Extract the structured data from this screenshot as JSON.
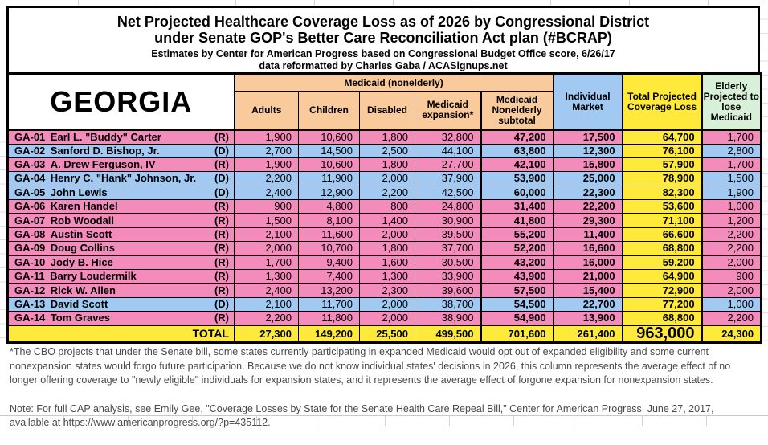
{
  "title": {
    "line1": "Net Projected Healthcare Coverage Loss as of 2026 by Congressional District",
    "line2": "under Senate GOP's Better Care Reconciliation Act plan (#BCRAP)",
    "line3": "Estimates by Center for American Progress based on Congressional Budget Office score, 6/26/17",
    "line4": "data reformatted by Charles Gaba / ACASignups.net"
  },
  "table": {
    "state": "GEORGIA",
    "group_header": "Medicaid (nonelderly)",
    "columns": [
      "Adults",
      "Children",
      "Disabled",
      "Medicaid expansion*",
      "Medicaid Nonelderly subtotal",
      "Individual Market",
      "Total Projected Coverage Loss",
      "Elderly Projected to lose Medicaid"
    ],
    "rows": [
      {
        "district": "GA-01",
        "name": "Earl L. \"Buddy\" Carter",
        "party": "R",
        "values": [
          "1,900",
          "10,600",
          "1,800",
          "32,800",
          "47,200",
          "17,500",
          "64,700",
          "1,700"
        ]
      },
      {
        "district": "GA-02",
        "name": "Sanford D. Bishop, Jr.",
        "party": "D",
        "values": [
          "2,700",
          "14,500",
          "2,500",
          "44,100",
          "63,800",
          "12,300",
          "76,100",
          "2,800"
        ]
      },
      {
        "district": "GA-03",
        "name": "A. Drew Ferguson, IV",
        "party": "R",
        "values": [
          "1,900",
          "10,600",
          "1,800",
          "27,700",
          "42,100",
          "15,800",
          "57,900",
          "1,700"
        ]
      },
      {
        "district": "GA-04",
        "name": "Henry C. \"Hank\" Johnson, Jr.",
        "party": "D",
        "values": [
          "2,200",
          "11,900",
          "2,000",
          "37,900",
          "53,900",
          "25,000",
          "78,900",
          "1,500"
        ]
      },
      {
        "district": "GA-05",
        "name": "John Lewis",
        "party": "D",
        "values": [
          "2,400",
          "12,900",
          "2,200",
          "42,500",
          "60,000",
          "22,300",
          "82,300",
          "1,900"
        ]
      },
      {
        "district": "GA-06",
        "name": "Karen Handel",
        "party": "R",
        "values": [
          "900",
          "4,800",
          "800",
          "24,800",
          "31,400",
          "22,200",
          "53,600",
          "1,000"
        ]
      },
      {
        "district": "GA-07",
        "name": "Rob Woodall",
        "party": "R",
        "values": [
          "1,500",
          "8,100",
          "1,400",
          "30,900",
          "41,800",
          "29,300",
          "71,100",
          "1,200"
        ]
      },
      {
        "district": "GA-08",
        "name": "Austin Scott",
        "party": "R",
        "values": [
          "2,100",
          "11,600",
          "2,000",
          "39,500",
          "55,200",
          "11,400",
          "66,600",
          "2,200"
        ]
      },
      {
        "district": "GA-09",
        "name": "Doug Collins",
        "party": "R",
        "values": [
          "2,000",
          "10,700",
          "1,800",
          "37,700",
          "52,200",
          "16,600",
          "68,800",
          "2,200"
        ]
      },
      {
        "district": "GA-10",
        "name": "Jody B. Hice",
        "party": "R",
        "values": [
          "1,700",
          "9,400",
          "1,600",
          "30,500",
          "43,200",
          "16,000",
          "59,200",
          "2,000"
        ]
      },
      {
        "district": "GA-11",
        "name": "Barry Loudermilk",
        "party": "R",
        "values": [
          "1,300",
          "7,400",
          "1,300",
          "33,900",
          "43,900",
          "21,000",
          "64,900",
          "900"
        ]
      },
      {
        "district": "GA-12",
        "name": "Rick W. Allen",
        "party": "R",
        "values": [
          "2,400",
          "13,200",
          "2,300",
          "39,600",
          "57,500",
          "15,400",
          "72,900",
          "2,000"
        ]
      },
      {
        "district": "GA-13",
        "name": "David Scott",
        "party": "D",
        "values": [
          "2,100",
          "11,700",
          "2,000",
          "38,700",
          "54,500",
          "22,700",
          "77,200",
          "1,000"
        ]
      },
      {
        "district": "GA-14",
        "name": "Tom Graves",
        "party": "R",
        "values": [
          "2,200",
          "11,800",
          "2,000",
          "38,900",
          "54,900",
          "13,900",
          "68,800",
          "2,200"
        ]
      }
    ],
    "total": {
      "label": "TOTAL",
      "values": [
        "27,300",
        "149,200",
        "25,500",
        "499,500",
        "701,600",
        "261,400",
        "963,000",
        "24,300"
      ]
    }
  },
  "footnotes": {
    "cbo_note": "*The CBO projects that under the Senate bill, some states currently participating in expanded Medicaid would opt out of expanded eligibility and some current nonexpansion states would forgo future participation. Because we do not know individual states' decisions in 2026, this column represents the average effect of no longer offering coverage to \"newly eligible\" individuals for expansion states, and it represents the average effect of forgone expansion for nonexpansion states.",
    "cap_note": "Note: For full CAP analysis, see Emily Gee, \"Coverage Losses by State for the Senate Health Care Repeal Bill,\" Center for American Progress, June 27, 2017, available at https://www.americanprogress.org/?p=435112."
  },
  "colors": {
    "republican_row": "#F48CBB",
    "democrat_row": "#A2C9F2",
    "total_yellow": "#FFE93A",
    "medicaid_header_peach": "#F9CB9C",
    "elderly_header_green": "#D7F0D7",
    "border": "#000000"
  }
}
